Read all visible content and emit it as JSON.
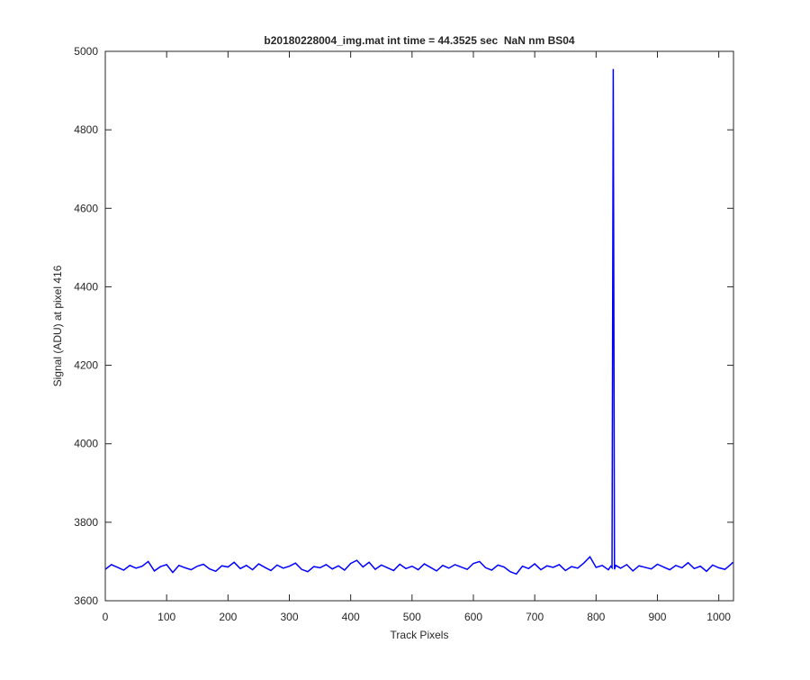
{
  "chart_data": {
    "type": "line",
    "title": "b20180228004_img.mat int time = 44.3525 sec  NaN nm BS04",
    "xlabel": "Track Pixels",
    "ylabel": "Signal (ADU) at pixel 416",
    "color": "#0000ff",
    "x": [
      0,
      10,
      20,
      30,
      40,
      50,
      60,
      70,
      80,
      90,
      100,
      110,
      120,
      130,
      140,
      150,
      160,
      170,
      180,
      190,
      200,
      210,
      220,
      230,
      240,
      250,
      260,
      270,
      280,
      290,
      300,
      310,
      320,
      330,
      340,
      350,
      360,
      370,
      380,
      390,
      400,
      410,
      420,
      430,
      440,
      450,
      460,
      470,
      480,
      490,
      500,
      510,
      520,
      530,
      540,
      550,
      560,
      570,
      580,
      590,
      600,
      610,
      620,
      630,
      640,
      650,
      660,
      670,
      680,
      690,
      700,
      710,
      720,
      730,
      740,
      750,
      760,
      770,
      780,
      790,
      800,
      810,
      820,
      824,
      826,
      828,
      830,
      832,
      840,
      850,
      860,
      870,
      880,
      890,
      900,
      910,
      920,
      930,
      940,
      950,
      960,
      970,
      980,
      990,
      1000,
      1010,
      1020,
      1023
    ],
    "values": [
      3680,
      3692,
      3685,
      3678,
      3690,
      3683,
      3688,
      3700,
      3676,
      3687,
      3692,
      3672,
      3690,
      3684,
      3679,
      3688,
      3693,
      3681,
      3675,
      3689,
      3686,
      3698,
      3682,
      3690,
      3679,
      3694,
      3685,
      3677,
      3691,
      3683,
      3688,
      3696,
      3680,
      3674,
      3687,
      3684,
      3692,
      3681,
      3689,
      3678,
      3695,
      3703,
      3686,
      3698,
      3680,
      3691,
      3684,
      3677,
      3693,
      3682,
      3688,
      3679,
      3694,
      3685,
      3676,
      3690,
      3683,
      3692,
      3686,
      3680,
      3695,
      3700,
      3684,
      3678,
      3691,
      3686,
      3674,
      3668,
      3688,
      3682,
      3694,
      3679,
      3689,
      3685,
      3692,
      3677,
      3687,
      3683,
      3696,
      3712,
      3685,
      3690,
      3679,
      3688,
      3684,
      4955,
      3680,
      3690,
      3683,
      3692,
      3676,
      3689,
      3685,
      3681,
      3693,
      3686,
      3679,
      3690,
      3684,
      3697,
      3682,
      3688,
      3675,
      3691,
      3684,
      3680,
      3693,
      3698
    ],
    "xlim": [
      0,
      1024
    ],
    "ylim": [
      3600,
      5000
    ],
    "xticks": [
      0,
      100,
      200,
      300,
      400,
      500,
      600,
      700,
      800,
      900,
      1000
    ],
    "yticks": [
      3600,
      3800,
      4000,
      4200,
      4400,
      4600,
      4800,
      5000
    ]
  }
}
